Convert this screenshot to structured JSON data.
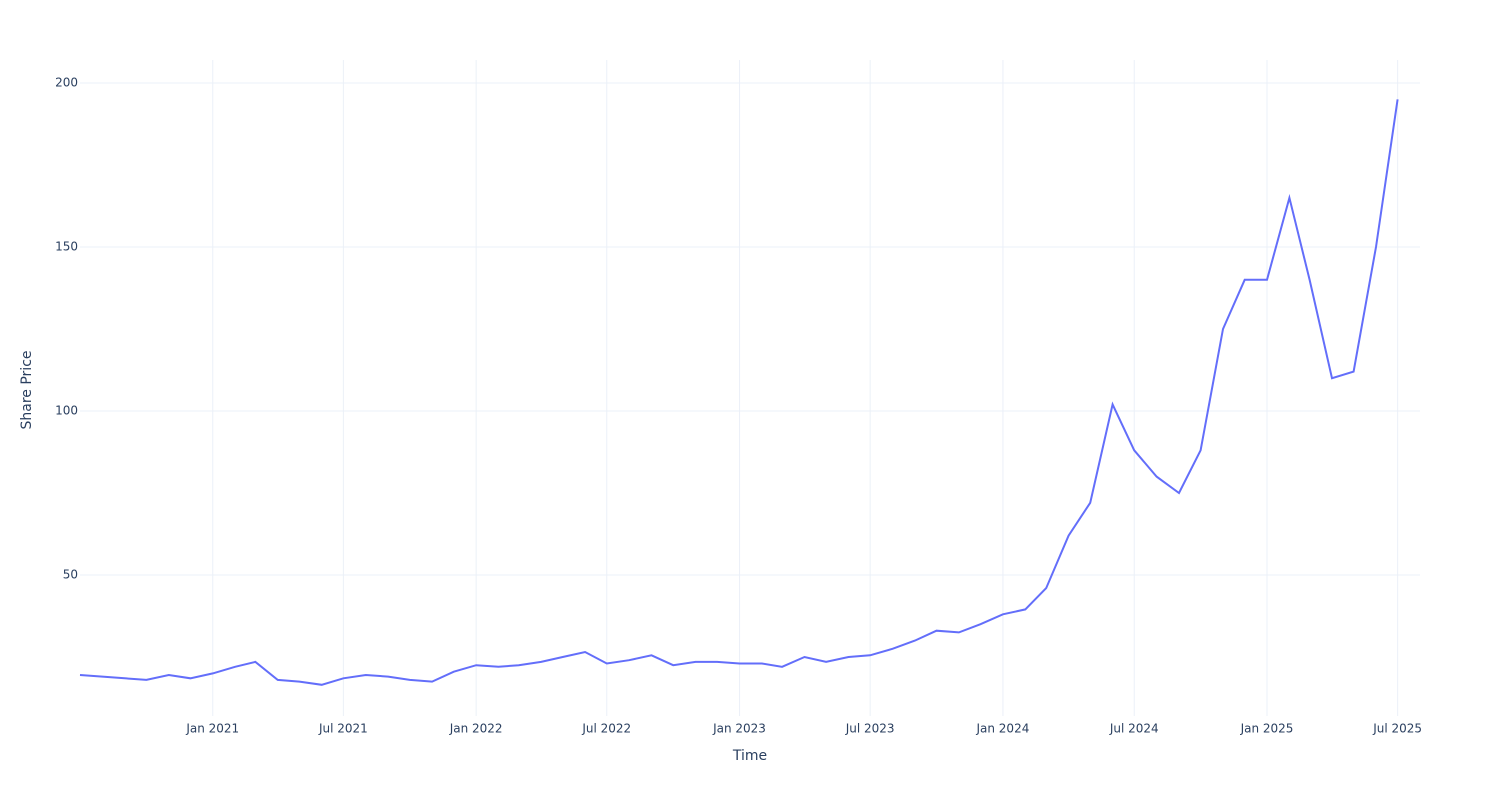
{
  "chart_data": {
    "type": "line",
    "x_label": "Time",
    "y_label": "Share Price",
    "x": [
      "2020-07",
      "2020-08",
      "2020-09",
      "2020-10",
      "2020-11",
      "2020-12",
      "2021-01",
      "2021-02",
      "2021-03",
      "2021-04",
      "2021-05",
      "2021-06",
      "2021-07",
      "2021-08",
      "2021-09",
      "2021-10",
      "2021-11",
      "2021-12",
      "2022-01",
      "2022-02",
      "2022-03",
      "2022-04",
      "2022-05",
      "2022-06",
      "2022-07",
      "2022-08",
      "2022-09",
      "2022-10",
      "2022-11",
      "2022-12",
      "2023-01",
      "2023-02",
      "2023-03",
      "2023-04",
      "2023-05",
      "2023-06",
      "2023-07",
      "2023-08",
      "2023-09",
      "2023-10",
      "2023-11",
      "2023-12",
      "2024-01",
      "2024-02",
      "2024-03",
      "2024-04",
      "2024-05",
      "2024-06",
      "2024-07",
      "2024-08",
      "2024-09",
      "2024-10",
      "2024-11",
      "2024-12",
      "2025-01",
      "2025-02",
      "2025-03",
      "2025-04",
      "2025-05",
      "2025-06",
      "2025-07"
    ],
    "series": [
      {
        "name": "Share Price",
        "color": "#636efa",
        "values": [
          19.5,
          19,
          18.5,
          18,
          19.5,
          18.5,
          20,
          22,
          23.5,
          18,
          17.5,
          16.5,
          18.5,
          19.5,
          19,
          18,
          17.5,
          20.5,
          22.5,
          22,
          22.5,
          23.5,
          25,
          26.5,
          23,
          24,
          25.5,
          22.5,
          23.5,
          23.5,
          23,
          23,
          22,
          25,
          23.5,
          25,
          25.5,
          27.5,
          30,
          33,
          32.5,
          35,
          38,
          39.5,
          46,
          62,
          72,
          102,
          88,
          80,
          75,
          88,
          125,
          140,
          140,
          165,
          140,
          110,
          112,
          150,
          195
        ]
      }
    ],
    "xlim": [
      "2020-07",
      "2025-08"
    ],
    "xticks": [
      {
        "value": "2021-01",
        "label": "Jan 2021"
      },
      {
        "value": "2021-07",
        "label": "Jul 2021"
      },
      {
        "value": "2022-01",
        "label": "Jan 2022"
      },
      {
        "value": "2022-07",
        "label": "Jul 2022"
      },
      {
        "value": "2023-01",
        "label": "Jan 2023"
      },
      {
        "value": "2023-07",
        "label": "Jul 2023"
      },
      {
        "value": "2024-01",
        "label": "Jan 2024"
      },
      {
        "value": "2024-07",
        "label": "Jul 2024"
      },
      {
        "value": "2025-01",
        "label": "Jan 2025"
      },
      {
        "value": "2025-07",
        "label": "Jul 2025"
      }
    ],
    "ylim": [
      7,
      207
    ],
    "yticks": [
      50,
      100,
      150,
      200
    ],
    "grid": true
  }
}
